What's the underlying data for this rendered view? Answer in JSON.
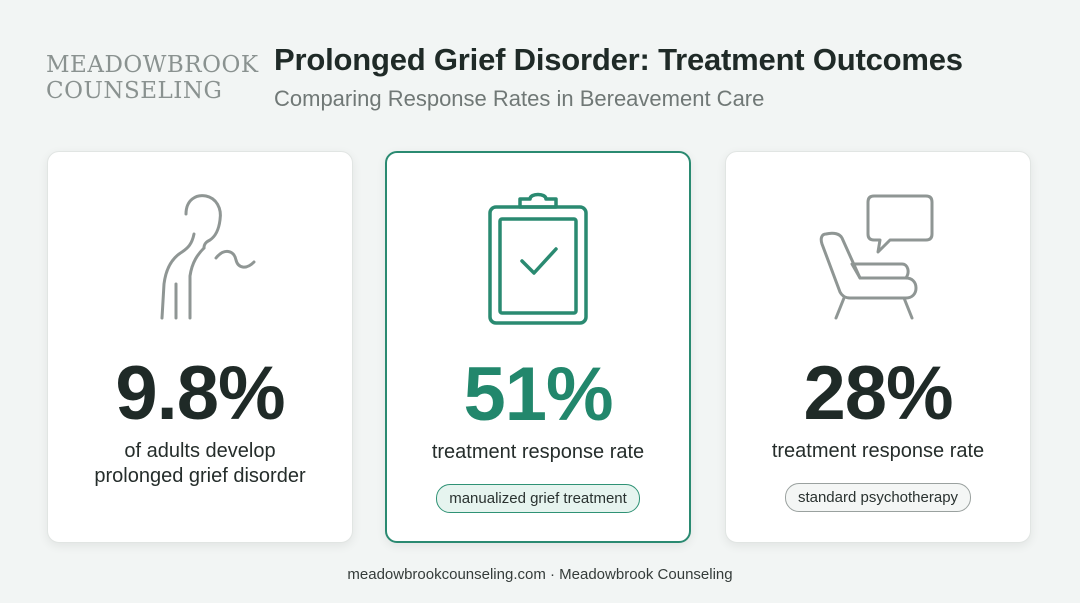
{
  "logo": {
    "line1": "MEADOWBROOK",
    "line2": "COUNSELING"
  },
  "header": {
    "title": "Prolonged Grief Disorder: Treatment Outcomes",
    "subtitle": "Comparing Response Rates in Bereavement Care"
  },
  "cards": [
    {
      "icon": "grieving-person-icon",
      "stat": "9.8%",
      "desc_line1": "of adults develop",
      "desc_line2": "prolonged grief disorder"
    },
    {
      "icon": "clipboard-check-icon",
      "stat": "51%",
      "desc_line1": "treatment response rate",
      "tag": "manualized grief treatment",
      "accent": "#22876c"
    },
    {
      "icon": "armchair-speech-icon",
      "stat": "28%",
      "desc_line1": "treatment response rate",
      "tag": "standard psychotherapy"
    }
  ],
  "footer": {
    "text": "meadowbrookcounseling.com · Meadowbrook Counseling"
  }
}
